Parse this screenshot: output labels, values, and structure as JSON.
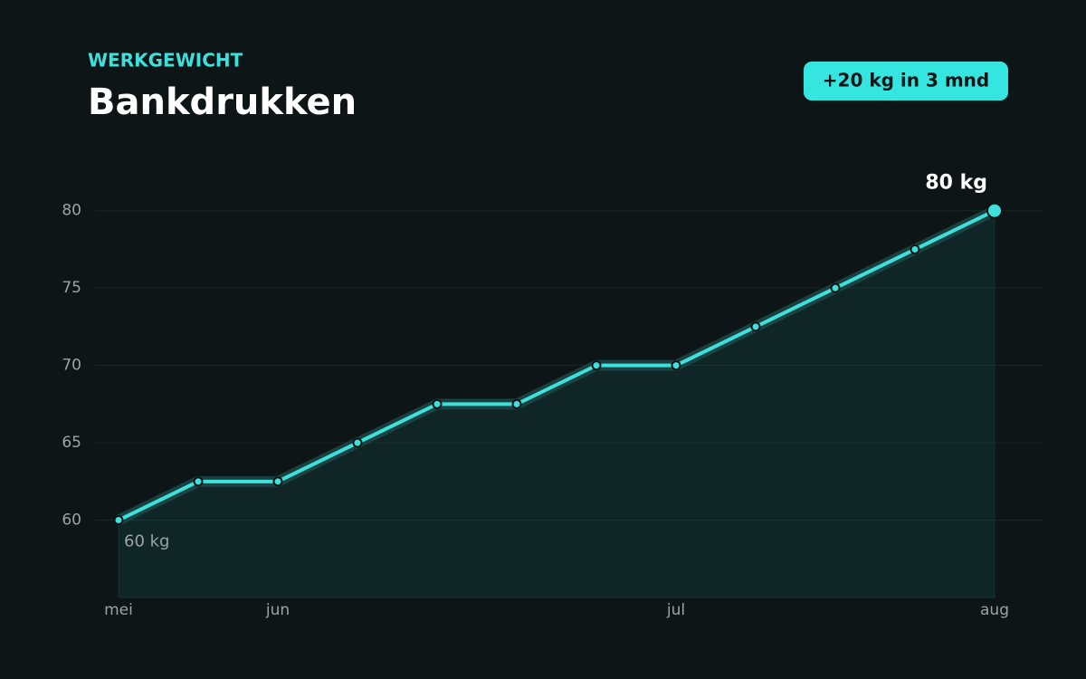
{
  "chart_data": {
    "type": "line",
    "subtitle": "WERKGEWICHT",
    "title": "Bankdrukken",
    "annotation": "+20 kg in 3 mnd",
    "categories": [
      "mei",
      null,
      "jun",
      null,
      null,
      null,
      null,
      "jul",
      null,
      null,
      null,
      "aug"
    ],
    "series": [
      {
        "name": "Bankdrukken",
        "color": "#3ee0dc",
        "values": [
          60,
          62.5,
          62.5,
          65,
          67.5,
          67.5,
          70,
          70,
          72.5,
          75,
          77.5,
          80
        ],
        "value_labels": [
          "60 kg",
          null,
          null,
          null,
          null,
          null,
          null,
          null,
          null,
          null,
          null,
          "80 kg"
        ]
      }
    ],
    "ylim": [
      55,
      82.5
    ],
    "yticks": [
      60,
      65,
      70,
      75,
      80
    ],
    "grid": true
  }
}
